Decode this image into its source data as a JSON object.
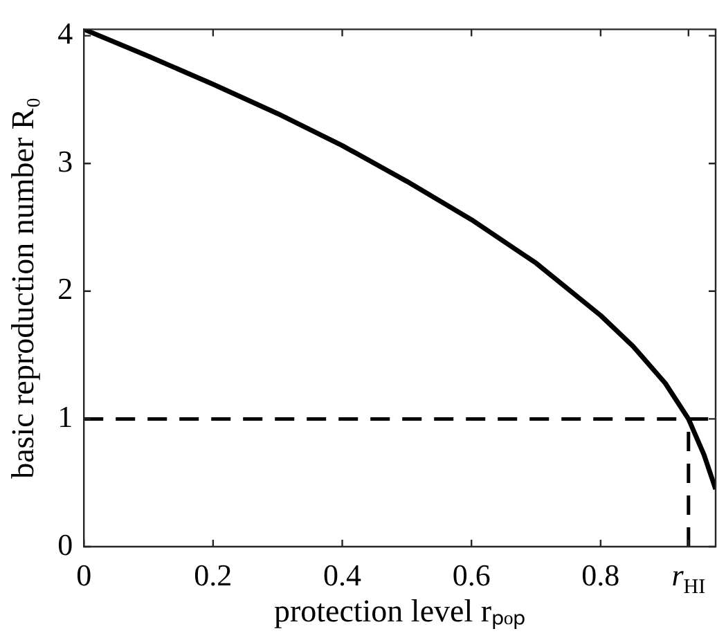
{
  "chart_data": {
    "type": "line",
    "xlabel": "protection level rₚₒₚ",
    "ylabel": "basic reproduction number R₀",
    "xlim": [
      0,
      0.978
    ],
    "ylim": [
      0,
      4.05
    ],
    "xticks": [
      0,
      0.2,
      0.4,
      0.6,
      0.8,
      {
        "value": 0.936,
        "label": "r$_{HI}$"
      }
    ],
    "yticks": [
      0,
      1,
      2,
      3,
      4
    ],
    "grid": false,
    "legend": false,
    "marker": "none",
    "ref_lines": [
      {
        "axis": "y",
        "value": 1,
        "color": "#000000",
        "line_style": "dashed"
      }
    ],
    "series": [
      {
        "color": "#000000",
        "line_style": "solid",
        "x": [
          0,
          0.1,
          0.2,
          0.3,
          0.4,
          0.5,
          0.6,
          0.7,
          0.8,
          0.85,
          0.9,
          0.936,
          0.96,
          0.978
        ],
        "values": [
          4.05,
          3.84,
          3.62,
          3.39,
          3.14,
          2.86,
          2.56,
          2.22,
          1.81,
          1.57,
          1.28,
          1.0,
          0.72,
          0.45
        ]
      },
      {
        "color": "#000000",
        "line_style": "dashed",
        "x": [
          0.936,
          0.936
        ],
        "values": [
          0,
          1
        ]
      }
    ]
  }
}
